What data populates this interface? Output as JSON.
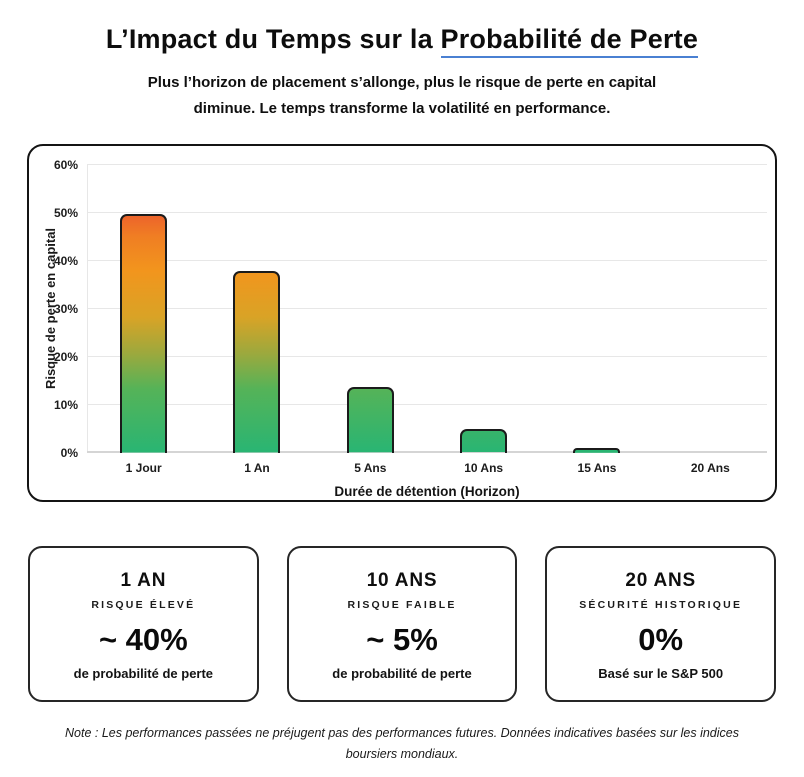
{
  "header": {
    "title_prefix": "L’Impact du Temps sur la ",
    "title_underlined": "Probabilité de Perte",
    "subtitle_lines": [
      "Plus l’horizon de placement s’allonge, plus le risque de perte en capital",
      "diminue. Le temps transforme la volatilité en performance."
    ]
  },
  "chart_data": {
    "type": "bar",
    "categories": [
      "1 Jour",
      "1 An",
      "5 Ans",
      "10 Ans",
      "15 Ans",
      "20 Ans"
    ],
    "values": [
      49.7,
      37.8,
      13.6,
      4.8,
      1.0,
      0
    ],
    "title": "",
    "xlabel": "Durée de détention (Horizon)",
    "ylabel": "Risque de perte en capital",
    "ylim": [
      0,
      60
    ],
    "yticks": [
      "0%",
      "10%",
      "20%",
      "30%",
      "40%",
      "50%",
      "60%"
    ],
    "grid": true,
    "legend": "none",
    "bar_border_color": "#1b1b1b",
    "gradient_stops": [
      {
        "color": "#29b573",
        "pos": 0
      },
      {
        "color": "#55b358",
        "pos": 22
      },
      {
        "color": "#9aa93e",
        "pos": 34
      },
      {
        "color": "#d9a326",
        "pos": 47
      },
      {
        "color": "#f2951d",
        "pos": 63
      },
      {
        "color": "#f07e23",
        "pos": 75
      },
      {
        "color": "#ec612c",
        "pos": 83
      },
      {
        "color": "#e23a2f",
        "pos": 100
      }
    ]
  },
  "cards": [
    {
      "heading": "1 AN",
      "label": "RISQUE ÉLEVÉ",
      "value": "~ 40%",
      "caption": "de probabilité de perte"
    },
    {
      "heading": "10 ANS",
      "label": "RISQUE FAIBLE",
      "value": "~ 5%",
      "caption": "de probabilité de perte"
    },
    {
      "heading": "20 ANS",
      "label": "SÉCURITÉ HISTORIQUE",
      "value": "0%",
      "caption": "Basé sur le S&P 500"
    }
  ],
  "note": "Note : Les performances passées ne préjugent pas des performances futures. Données indicatives basées sur les indices boursiers mondiaux.",
  "colors": {
    "underline_accent": "#4a80d2",
    "panel_border": "#141414",
    "gridline": "#e7e7e7",
    "baseline": "#d5d5d5"
  }
}
